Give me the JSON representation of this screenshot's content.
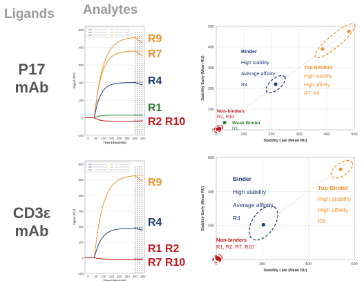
{
  "headers": {
    "ligands": "Ligands",
    "analytes": "Analytes"
  },
  "rows": [
    {
      "label_line1": "P17",
      "label_line2": "mAb"
    },
    {
      "label_line1": "CD3ε",
      "label_line2": "mAb"
    }
  ],
  "colors": {
    "orange": "#f0922b",
    "blue": "#1f3b78",
    "green": "#2e7d32",
    "red": "#c0161b",
    "grey": "#888888"
  },
  "chart_data": [
    {
      "type": "line",
      "id": "sensorgram-p17",
      "xlabel": "Time (Seconds)",
      "ylabel": "Signal (RU)",
      "x_ticks": [
        0,
        50,
        100,
        150,
        200,
        250,
        300,
        350
      ],
      "y_ticks": [
        -100,
        0,
        100,
        200,
        300,
        400,
        500
      ],
      "xlim": [
        -20,
        360
      ],
      "ylim": [
        -100,
        520
      ],
      "series": [
        {
          "name": "R9",
          "color": "#f0922b",
          "plateau": 460
        },
        {
          "name": "R7",
          "color": "#f0922b",
          "plateau": 380
        },
        {
          "name": "R4",
          "color": "#1f3b78",
          "plateau": 200
        },
        {
          "name": "R1",
          "color": "#2e7d32",
          "plateau": 15
        },
        {
          "name": "R2 R10",
          "color": "#c0161b",
          "plateau": -20
        }
      ],
      "labels": [
        "R9",
        "R7",
        "R4",
        "R1",
        "R2 R10"
      ]
    },
    {
      "type": "scatter",
      "id": "stability-p17",
      "xlabel": "Stability Late (Mean RU)",
      "ylabel": "Stability Early (Mean RU)",
      "x_ticks": [
        0,
        100,
        200,
        300,
        400,
        500
      ],
      "y_ticks": [
        0,
        100,
        200,
        300,
        400,
        500
      ],
      "xlim": [
        0,
        500
      ],
      "ylim": [
        0,
        500
      ],
      "points": [
        {
          "x": 480,
          "y": 475,
          "color": "#f0922b"
        },
        {
          "x": 385,
          "y": 390,
          "color": "#f0922b"
        },
        {
          "x": 215,
          "y": 220,
          "color": "#1f3b78"
        },
        {
          "x": 30,
          "y": 35,
          "color": "#2e7d32"
        },
        {
          "x": 5,
          "y": 3,
          "color": "#c0161b"
        },
        {
          "x": 12,
          "y": 6,
          "color": "#c0161b"
        }
      ],
      "annotations": {
        "binder": [
          "Binder",
          "High stability",
          "Average affinity",
          "R4"
        ],
        "top": [
          "Top Binders",
          "High stability",
          "High affinity",
          "R7, R9"
        ],
        "non": [
          "Non-binders",
          "R2, R10"
        ],
        "weak": [
          "Weak Binder",
          "R1"
        ]
      }
    },
    {
      "type": "line",
      "id": "sensorgram-cd3",
      "xlabel": "Time (Seconds)",
      "ylabel": "Signal (RU)",
      "x_ticks": [
        0,
        50,
        100,
        150,
        200,
        250,
        300,
        350
      ],
      "y_ticks": [
        -100,
        0,
        100,
        200,
        300,
        400,
        500,
        600
      ],
      "xlim": [
        -20,
        360
      ],
      "ylim": [
        -100,
        620
      ],
      "series": [
        {
          "name": "R9",
          "color": "#f0922b",
          "plateau": 530
        },
        {
          "name": "R4",
          "color": "#1f3b78",
          "plateau": 190
        },
        {
          "name": "R1 R2 R7 R10",
          "color": "#c0161b",
          "plateau": -10
        }
      ],
      "labels": [
        "R9",
        "R4",
        "R1 R2",
        "R7 R10"
      ]
    },
    {
      "type": "scatter",
      "id": "stability-cd3",
      "xlabel": "Stability Late (Mean RU)",
      "ylabel": "Stability Early (Mean RU)",
      "x_ticks": [
        0,
        200,
        400,
        600
      ],
      "y_ticks": [
        0,
        200,
        400,
        600
      ],
      "xlim": [
        0,
        600
      ],
      "ylim": [
        0,
        600
      ],
      "points": [
        {
          "x": 540,
          "y": 530,
          "color": "#f0922b"
        },
        {
          "x": 205,
          "y": 205,
          "color": "#1f3b78"
        },
        {
          "x": 5,
          "y": 4,
          "color": "#c0161b"
        },
        {
          "x": 10,
          "y": 8,
          "color": "#c0161b"
        },
        {
          "x": 3,
          "y": 10,
          "color": "#c0161b"
        },
        {
          "x": 14,
          "y": 3,
          "color": "#c0161b"
        }
      ],
      "annotations": {
        "binder": [
          "Binder",
          "High stability",
          "Average affinity",
          "R4"
        ],
        "top": [
          "Top Binder",
          "High stability",
          "High affinity",
          "R9"
        ],
        "non": [
          "Non-binders",
          "R1, R2, R7, R10"
        ]
      }
    }
  ]
}
